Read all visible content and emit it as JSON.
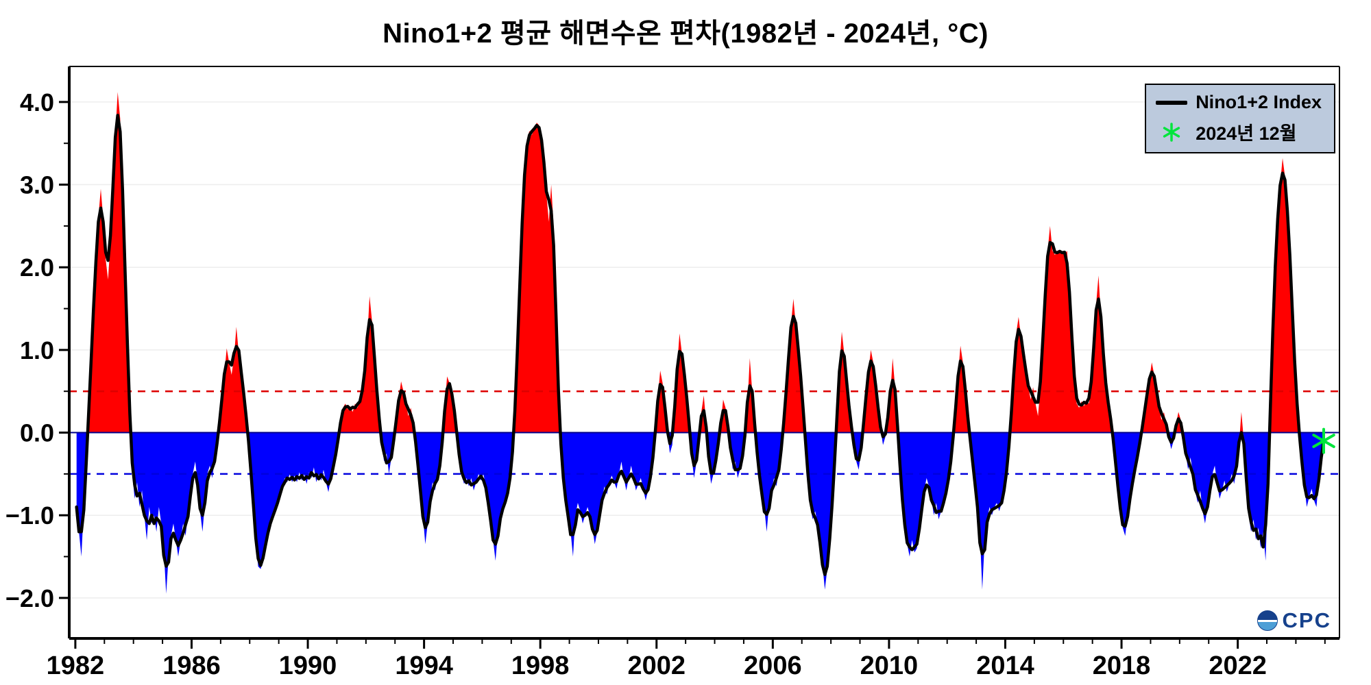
{
  "title": "Nino1+2 평균 해면수온 편차(1982년 - 2024년, °C)",
  "legend": {
    "series_label": "Nino1+2 Index",
    "marker_label": "2024년 12월"
  },
  "watermark": "CPC",
  "chart_data": {
    "type": "line",
    "series_name": "Nino1+2 Index",
    "title": "Nino1+2 평균 해면수온 편차(1982년 - 2024년, °C)",
    "ylabel": "",
    "xlabel": "",
    "units": "°C",
    "frequency": "monthly",
    "start_year": 1982,
    "x_range": [
      1981.79,
      2025.5
    ],
    "y_range": [
      -2.49,
      4.43
    ],
    "x_ticks": [
      1982,
      1986,
      1990,
      1994,
      1998,
      2002,
      2006,
      2010,
      2014,
      2018,
      2022
    ],
    "y_ticks": [
      -2.0,
      -1.0,
      0.0,
      1.0,
      2.0,
      3.0,
      4.0
    ],
    "thresholds": {
      "el_nino": 0.5,
      "la_nina": -0.5
    },
    "last_point": {
      "label": "2024년 12월",
      "x": 2024.96,
      "value": -0.1
    },
    "colors": {
      "line": "#000000",
      "positive_fill": "#ff0000",
      "negative_fill": "#0000ff",
      "zero_line": "#00008b",
      "el_nino_line": "#dd0000",
      "la_nina_line": "#0000dd",
      "marker": "#00e53c",
      "legend_bg": "#bccadd"
    },
    "monthly_by_year": [
      [
        -0.9,
        -1.2,
        -1.5,
        -0.9,
        -0.4,
        0.2,
        0.9,
        1.5,
        2.1,
        2.6,
        2.95,
        2.6
      ],
      [
        2.1,
        1.85,
        2.3,
        3.0,
        3.6,
        4.12,
        3.8,
        3.0,
        2.0,
        1.0,
        0.2,
        -0.5
      ],
      [
        -0.8,
        -0.6,
        -0.9,
        -0.7,
        -1.0,
        -1.3,
        -0.9,
        -1.1,
        -1.0,
        -1.2,
        -0.9,
        -1.1
      ],
      [
        -1.4,
        -1.95,
        -1.5,
        -1.25,
        -1.1,
        -1.3,
        -1.5,
        -1.3,
        -1.1,
        -1.25,
        -1.0,
        -0.8
      ],
      [
        -0.5,
        -0.35,
        -0.6,
        -0.95,
        -1.2,
        -0.85,
        -0.5,
        -0.4,
        -0.55,
        -0.35,
        -0.15,
        0.1
      ],
      [
        0.4,
        0.7,
        1.02,
        0.85,
        0.7,
        0.9,
        1.28,
        0.95,
        0.75,
        0.5,
        0.2,
        -0.1
      ],
      [
        -0.4,
        -0.9,
        -1.3,
        -1.62,
        -1.65,
        -1.55,
        -1.35,
        -1.2,
        -1.1,
        -1.0,
        -0.95,
        -0.85
      ],
      [
        -0.75,
        -0.65,
        -0.55,
        -0.6,
        -0.5,
        -0.6,
        -0.52,
        -0.6,
        -0.48,
        -0.58,
        -0.5,
        -0.62
      ],
      [
        -0.48,
        -0.55,
        -0.42,
        -0.6,
        -0.5,
        -0.58,
        -0.45,
        -0.6,
        -0.72,
        -0.55,
        -0.4,
        -0.3
      ],
      [
        -0.1,
        0.15,
        0.3,
        0.35,
        0.28,
        0.32,
        0.25,
        0.35,
        0.3,
        0.38,
        0.45,
        0.7
      ],
      [
        1.1,
        1.65,
        1.35,
        0.9,
        0.5,
        0.15,
        -0.15,
        -0.35,
        -0.25,
        -0.5,
        -0.3,
        -0.1
      ],
      [
        0.15,
        0.4,
        0.62,
        0.5,
        0.35,
        0.2,
        0.3,
        0.15,
        -0.1,
        -0.4,
        -0.7,
        -1.0
      ],
      [
        -1.35,
        -1.1,
        -0.8,
        -0.6,
        -0.7,
        -0.55,
        -0.45,
        -0.2,
        0.3,
        0.68,
        0.6,
        0.5
      ],
      [
        0.3,
        0.0,
        -0.3,
        -0.5,
        -0.62,
        -0.55,
        -0.65,
        -0.55,
        -0.7,
        -0.6,
        -0.5,
        -0.58
      ],
      [
        -0.5,
        -0.65,
        -0.85,
        -1.05,
        -1.3,
        -1.55,
        -1.2,
        -1.0,
        -0.92,
        -0.85,
        -0.75,
        -0.6
      ],
      [
        -0.3,
        0.2,
        0.9,
        1.8,
        2.6,
        3.2,
        3.55,
        3.65,
        3.6,
        3.68,
        3.75,
        3.72
      ],
      [
        3.6,
        3.3,
        2.9,
        2.55,
        3.0,
        2.5,
        1.3,
        0.4,
        -0.2,
        -0.6,
        -0.85,
        -1.0
      ],
      [
        -1.2,
        -1.5,
        -1.0,
        -0.85,
        -0.95,
        -1.1,
        -1.0,
        -0.9,
        -1.0,
        -1.15,
        -1.35,
        -1.2
      ],
      [
        -1.0,
        -0.8,
        -0.65,
        -0.75,
        -0.6,
        -0.52,
        -0.6,
        -0.68,
        -0.5,
        -0.35,
        -0.55,
        -0.7
      ],
      [
        -0.55,
        -0.4,
        -0.55,
        -0.7,
        -0.62,
        -0.55,
        -0.68,
        -0.82,
        -0.7,
        -0.55,
        -0.35,
        0.0
      ],
      [
        0.4,
        0.75,
        0.6,
        0.3,
        0.0,
        -0.25,
        -0.15,
        0.3,
        0.8,
        1.2,
        0.95,
        0.7
      ],
      [
        0.45,
        0.1,
        -0.3,
        -0.55,
        -0.35,
        -0.1,
        0.25,
        0.45,
        0.1,
        -0.35,
        -0.62,
        -0.5
      ],
      [
        -0.35,
        -0.15,
        0.1,
        0.4,
        0.3,
        0.1,
        -0.2,
        -0.45,
        -0.35,
        -0.55,
        -0.45,
        -0.3
      ],
      [
        -0.1,
        0.3,
        0.9,
        0.5,
        0.1,
        -0.25,
        -0.55,
        -0.75,
        -0.92,
        -1.2,
        -0.85,
        -0.7
      ],
      [
        -0.55,
        -0.65,
        -0.45,
        -0.25,
        0.1,
        0.5,
        0.9,
        1.3,
        1.62,
        1.3,
        1.05,
        0.7
      ],
      [
        0.3,
        -0.1,
        -0.5,
        -0.9,
        -1.05,
        -0.95,
        -1.1,
        -1.3,
        -1.6,
        -1.9,
        -1.65,
        -1.3
      ],
      [
        -0.9,
        -0.4,
        0.2,
        0.8,
        1.22,
        0.95,
        0.6,
        0.3,
        0.05,
        -0.15,
        -0.35,
        -0.45
      ],
      [
        -0.2,
        0.1,
        0.45,
        0.75,
        1.0,
        0.85,
        0.55,
        0.3,
        0.05,
        -0.15,
        -0.05,
        0.15
      ],
      [
        0.45,
        0.9,
        0.55,
        0.1,
        -0.4,
        -0.85,
        -1.15,
        -1.35,
        -1.5,
        -1.3,
        -1.45,
        -1.4
      ],
      [
        -1.2,
        -0.9,
        -0.7,
        -0.55,
        -0.65,
        -0.8,
        -1.0,
        -0.85,
        -1.05,
        -0.95,
        -0.85,
        -0.75
      ],
      [
        -0.6,
        -0.35,
        -0.1,
        0.3,
        0.7,
        1.05,
        0.85,
        0.5,
        0.2,
        -0.1,
        -0.35,
        -0.6
      ],
      [
        -0.9,
        -1.2,
        -1.9,
        -1.3,
        -1.05,
        -0.9,
        -1.0,
        -0.9,
        -0.85,
        -0.95,
        -0.85,
        -0.75
      ],
      [
        -0.5,
        -0.2,
        0.2,
        0.7,
        1.2,
        1.4,
        1.15,
        0.95,
        0.75,
        0.55,
        0.4,
        0.55
      ],
      [
        0.35,
        0.2,
        0.55,
        1.1,
        1.7,
        2.2,
        2.5,
        2.2,
        2.15,
        2.2,
        2.18,
        2.2
      ],
      [
        2.15,
        2.2,
        1.8,
        1.1,
        0.6,
        0.35,
        0.3,
        0.38,
        0.32,
        0.4,
        0.35,
        0.5
      ],
      [
        1.0,
        1.55,
        1.9,
        1.4,
        0.9,
        0.55,
        0.35,
        0.2,
        -0.05,
        -0.35,
        -0.65,
        -0.95
      ],
      [
        -1.15,
        -1.25,
        -1.0,
        -0.8,
        -0.6,
        -0.45,
        -0.3,
        -0.15,
        0.05,
        0.25,
        0.45,
        0.65
      ],
      [
        0.85,
        0.7,
        0.5,
        0.3,
        0.15,
        0.25,
        0.1,
        -0.05,
        -0.2,
        -0.1,
        0.1,
        0.25
      ],
      [
        0.15,
        -0.05,
        -0.25,
        -0.45,
        -0.3,
        -0.5,
        -0.72,
        -0.85,
        -0.7,
        -0.95,
        -1.1,
        -0.9
      ],
      [
        -0.7,
        -0.5,
        -0.4,
        -0.62,
        -0.8,
        -0.7,
        -0.58,
        -0.72,
        -0.62,
        -0.5,
        -0.62,
        -0.45
      ],
      [
        -0.15,
        0.25,
        -0.1,
        -0.55,
        -1.0,
        -1.2,
        -1.05,
        -1.3,
        -1.15,
        -1.4,
        -1.2,
        -1.55
      ],
      [
        -0.6,
        0.3,
        1.3,
        2.1,
        2.65,
        3.0,
        3.32,
        3.1,
        2.75,
        2.2,
        1.5,
        0.8
      ],
      [
        0.3,
        -0.05,
        -0.35,
        -0.65,
        -0.9,
        -0.78,
        -0.68,
        -0.82,
        -0.9,
        -0.55,
        -0.25,
        -0.1
      ]
    ]
  }
}
